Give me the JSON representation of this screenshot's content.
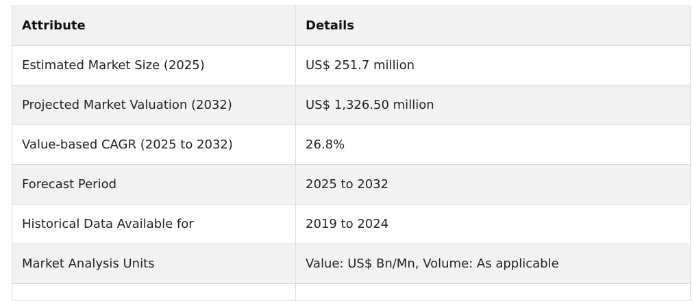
{
  "table": {
    "headers": [
      "Attribute",
      "Details"
    ],
    "rows": [
      [
        "Estimated Market Size (2025)",
        "US$ 251.7 million"
      ],
      [
        "Projected Market Valuation (2032)",
        "US$ 1,326.50 million"
      ],
      [
        "Value-based CAGR (2025 to 2032)",
        "26.8%"
      ],
      [
        "Forecast Period",
        "2025 to 2032"
      ],
      [
        "Historical Data Available for",
        "2019 to 2024"
      ],
      [
        "Market Analysis Units",
        "Value: US$ Bn/Mn, Volume: As applicable"
      ]
    ]
  }
}
